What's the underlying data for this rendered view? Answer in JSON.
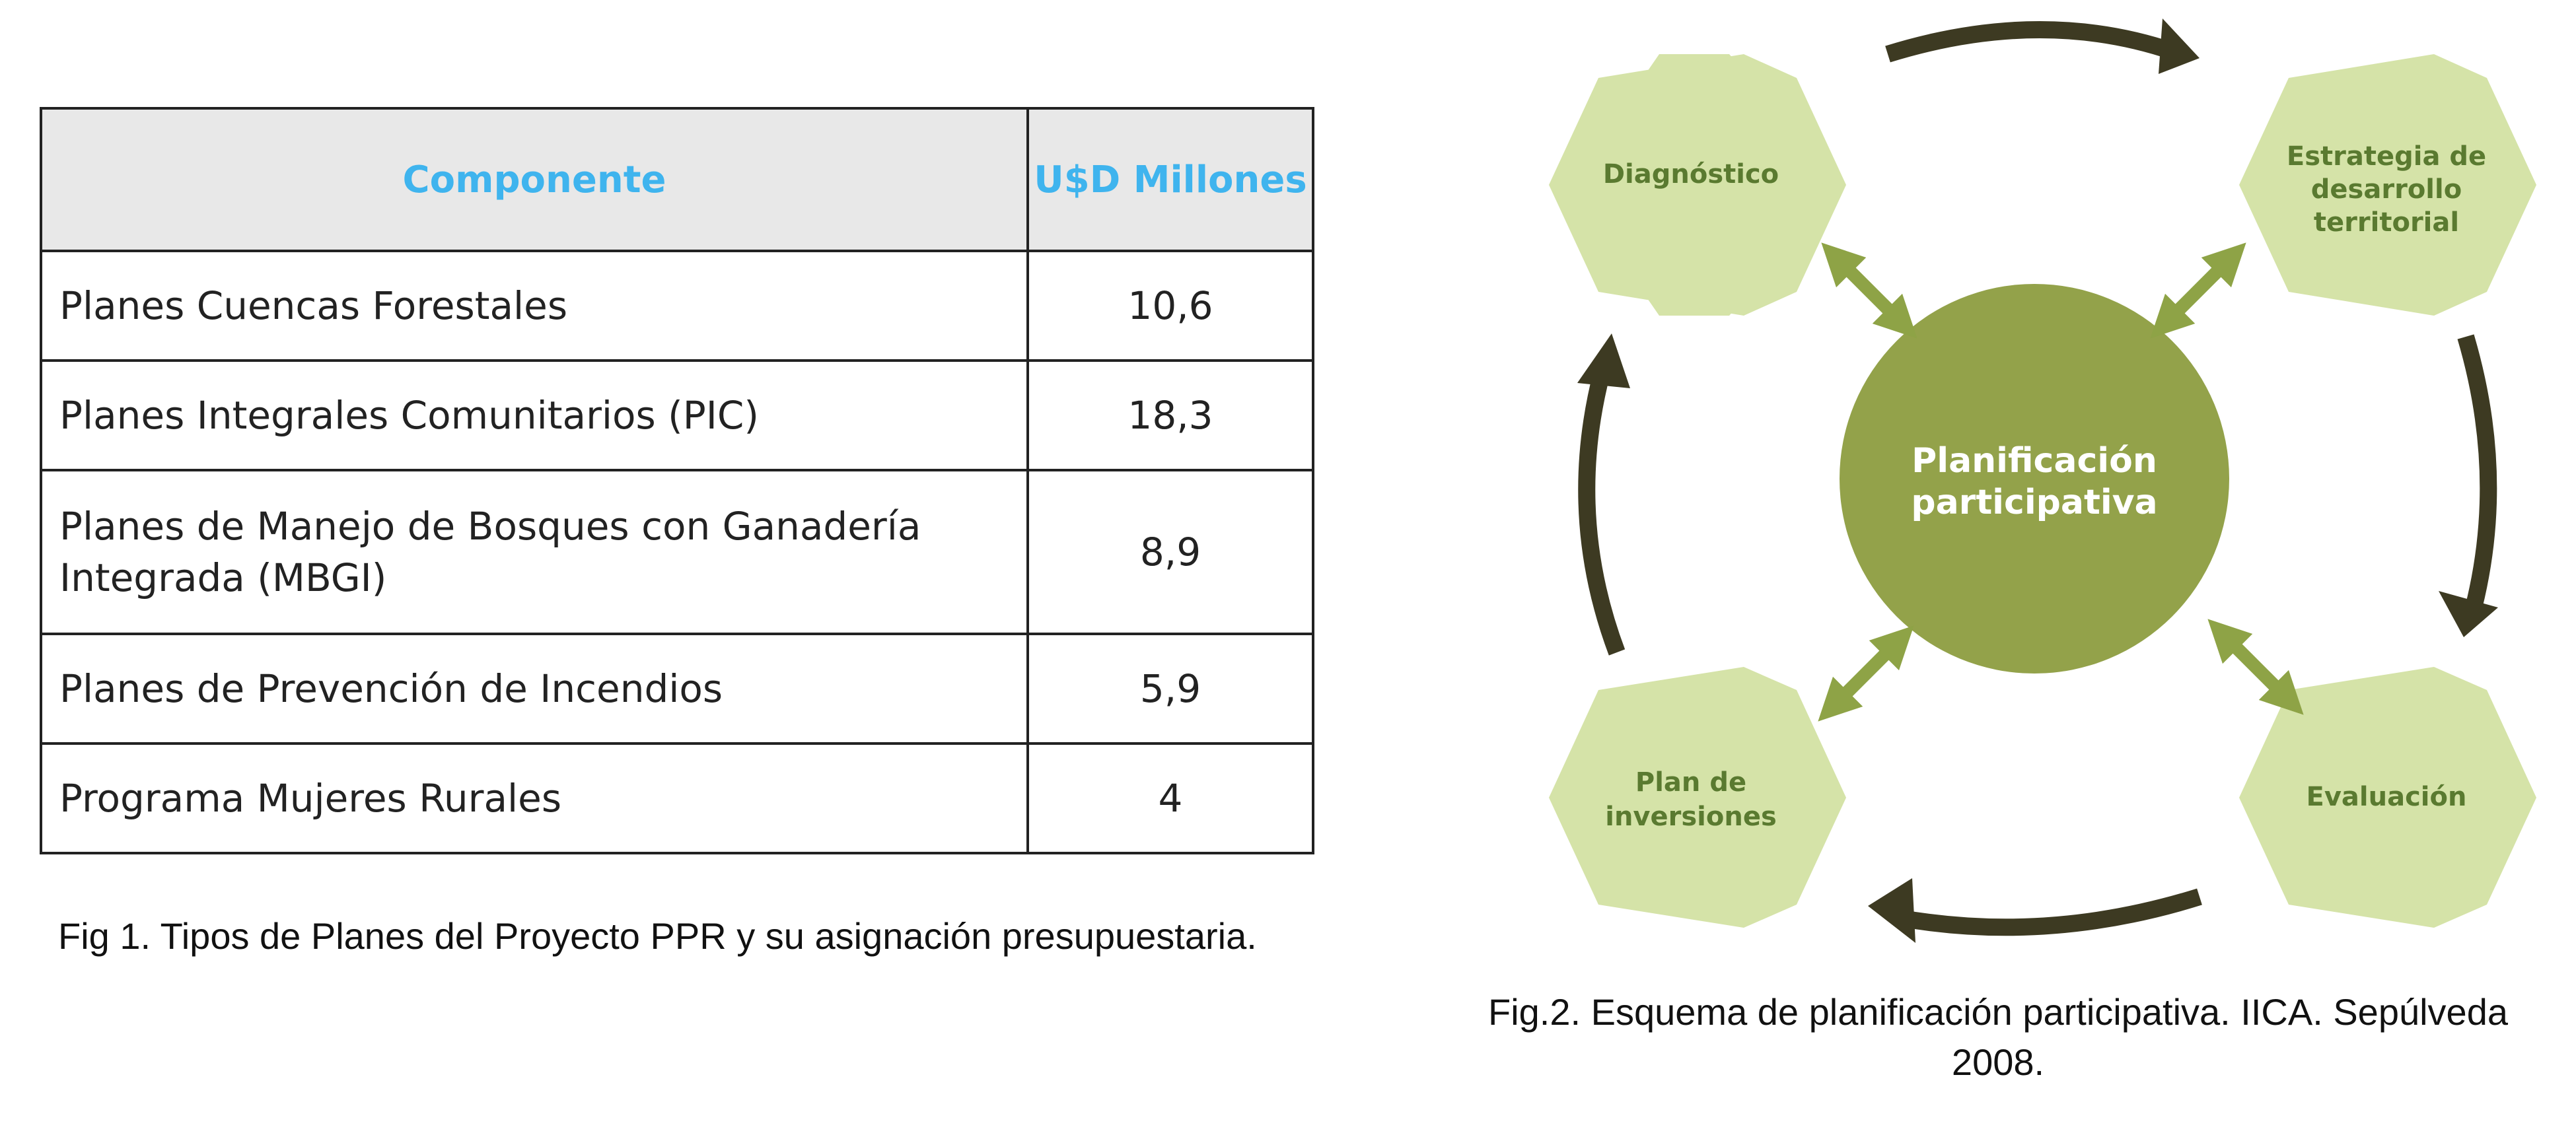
{
  "fig1": {
    "table": {
      "headers": [
        "Componente",
        "U$D Millones"
      ],
      "rows": [
        {
          "componente": "Planes Cuencas Forestales",
          "valor": "10,6"
        },
        {
          "componente": "Planes Integrales Comunitarios (PIC)",
          "valor": "18,3"
        },
        {
          "componente": "Planes de Manejo de Bosques con Ganadería Integrada (MBGI)",
          "valor": "8,9"
        },
        {
          "componente": "Planes de Prevención de Incendios",
          "valor": "5,9"
        },
        {
          "componente": "Programa Mujeres Rurales",
          "valor": "4"
        }
      ]
    },
    "caption": "Fig 1. Tipos de Planes del Proyecto PPR y su asignación presupuestaria."
  },
  "fig2": {
    "center": {
      "line1": "Planificación",
      "line2": "participativa"
    },
    "nodes": {
      "diagnostico": [
        "Diagnóstico"
      ],
      "estrategia": [
        "Estrategia de",
        "desarrollo",
        "territorial"
      ],
      "evaluacion": [
        "Evaluación"
      ],
      "plan": [
        "Plan de",
        "inversiones"
      ]
    },
    "caption": {
      "line1": "Fig.2. Esquema de planificación participativa. IICA. Sepúlveda",
      "line2": "2008."
    },
    "colors": {
      "hexagon": "#d5e3a8",
      "hexagon_text": "#5a7a30",
      "center_circle": "#93a24a",
      "double_arrow": "#8ea346",
      "cycle_arrow": "#3d3a22",
      "table_header_text": "#3fb4ee",
      "table_header_bg": "#e8e8e8"
    }
  }
}
